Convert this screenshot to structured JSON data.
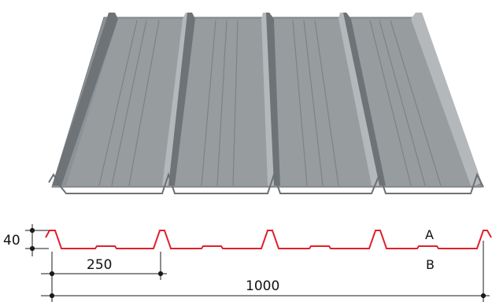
{
  "diagram": {
    "dimensions": {
      "height": "40",
      "pitch": "250",
      "width": "1000"
    },
    "face_labels": {
      "top": "A",
      "bottom": "B"
    },
    "colors": {
      "sheet_metal": "#8d9296",
      "sheet_dark": "#6e7377",
      "sheet_light": "#b4b8bb",
      "profile_line": "#e0202b",
      "dimension_line": "#1a1a1a"
    }
  }
}
